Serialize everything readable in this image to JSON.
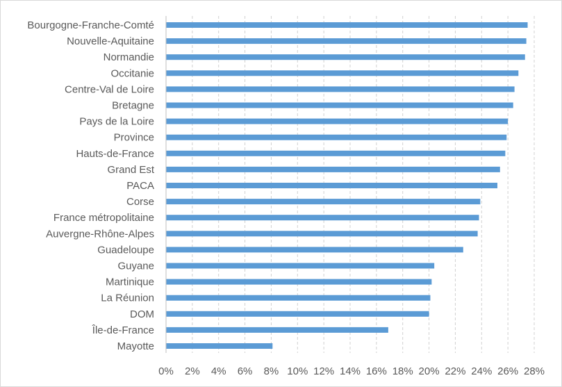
{
  "chart_data": {
    "type": "bar",
    "orientation": "horizontal",
    "categories": [
      "Bourgogne-Franche-Comté",
      "Nouvelle-Aquitaine",
      "Normandie",
      "Occitanie",
      "Centre-Val de Loire",
      "Bretagne",
      "Pays de la Loire",
      "Province",
      "Hauts-de-France",
      "Grand Est",
      "PACA",
      "Corse",
      "France métropolitaine",
      "Auvergne-Rhône-Alpes",
      "Guadeloupe",
      "Guyane",
      "Martinique",
      "La Réunion",
      "DOM",
      "Île-de-France",
      "Mayotte"
    ],
    "values": [
      27.5,
      27.4,
      27.3,
      26.8,
      26.5,
      26.4,
      26.0,
      25.9,
      25.8,
      25.4,
      25.2,
      23.9,
      23.8,
      23.7,
      22.6,
      20.4,
      20.2,
      20.1,
      20.0,
      16.9,
      8.1
    ],
    "xlim": [
      0,
      28
    ],
    "x_ticks": [
      0,
      2,
      4,
      6,
      8,
      10,
      12,
      14,
      16,
      18,
      20,
      22,
      24,
      26,
      28
    ],
    "x_tick_labels": [
      "0%",
      "2%",
      "4%",
      "6%",
      "8%",
      "10%",
      "12%",
      "14%",
      "16%",
      "18%",
      "20%",
      "22%",
      "24%",
      "26%",
      "28%"
    ],
    "title": "",
    "xlabel": "",
    "ylabel": "",
    "grid": true,
    "grid_style": "dashed",
    "legend": "none",
    "bar_color": "#5b9bd5",
    "grid_color": "#d0d0d0",
    "text_color": "#595959"
  }
}
